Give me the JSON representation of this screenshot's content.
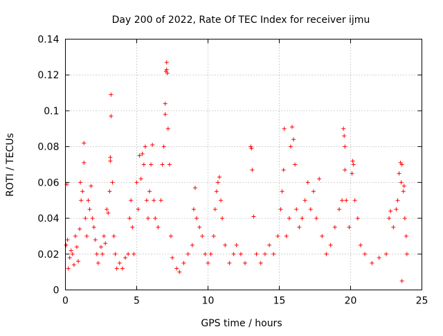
{
  "chart_data": {
    "type": "scatter",
    "title": "Day 200 of 2022, Rate Of TEC Index for receiver ijmu",
    "xlabel": "GPS time / hours",
    "ylabel": "ROTI / TECUs",
    "xlim": [
      0,
      25
    ],
    "ylim": [
      0,
      0.14
    ],
    "xticks": [
      "0",
      "5",
      "10",
      "15",
      "20",
      "25"
    ],
    "yticks": [
      "0",
      "0.02",
      "0.04",
      "0.06",
      "0.08",
      "0.1",
      "0.12",
      "0.14"
    ],
    "grid": true,
    "marker": "plus",
    "color": "#ff0000",
    "series": [
      {
        "points": [
          [
            0.05,
            0.025
          ],
          [
            0.1,
            0.059
          ],
          [
            0.15,
            0.028
          ],
          [
            0.2,
            0.012
          ],
          [
            0.3,
            0.018
          ],
          [
            0.4,
            0.022
          ],
          [
            0.5,
            0.02
          ],
          [
            0.6,
            0.014
          ],
          [
            0.7,
            0.03
          ],
          [
            0.8,
            0.024
          ],
          [
            0.9,
            0.016
          ],
          [
            1.0,
            0.034
          ],
          [
            1.05,
            0.06
          ],
          [
            1.1,
            0.05
          ],
          [
            1.2,
            0.055
          ],
          [
            1.3,
            0.071
          ],
          [
            1.3,
            0.082
          ],
          [
            1.4,
            0.04
          ],
          [
            1.5,
            0.03
          ],
          [
            1.6,
            0.05
          ],
          [
            1.7,
            0.045
          ],
          [
            1.8,
            0.058
          ],
          [
            1.9,
            0.04
          ],
          [
            2.0,
            0.035
          ],
          [
            2.1,
            0.028
          ],
          [
            2.2,
            0.02
          ],
          [
            2.3,
            0.015
          ],
          [
            2.5,
            0.024
          ],
          [
            2.6,
            0.02
          ],
          [
            2.7,
            0.03
          ],
          [
            2.8,
            0.026
          ],
          [
            2.9,
            0.045
          ],
          [
            3.0,
            0.043
          ],
          [
            3.1,
            0.055
          ],
          [
            3.15,
            0.074
          ],
          [
            3.15,
            0.072
          ],
          [
            3.2,
            0.097
          ],
          [
            3.2,
            0.109
          ],
          [
            3.3,
            0.06
          ],
          [
            3.4,
            0.03
          ],
          [
            3.5,
            0.02
          ],
          [
            3.6,
            0.012
          ],
          [
            3.8,
            0.015
          ],
          [
            4.0,
            0.012
          ],
          [
            4.2,
            0.018
          ],
          [
            4.4,
            0.02
          ],
          [
            4.5,
            0.04
          ],
          [
            4.6,
            0.05
          ],
          [
            4.7,
            0.035
          ],
          [
            4.8,
            0.02
          ],
          [
            5.0,
            0.06
          ],
          [
            5.1,
            0.045
          ],
          [
            5.2,
            0.075
          ],
          [
            5.3,
            0.062
          ],
          [
            5.4,
            0.076
          ],
          [
            5.5,
            0.07
          ],
          [
            5.6,
            0.08
          ],
          [
            5.7,
            0.05
          ],
          [
            5.8,
            0.04
          ],
          [
            5.9,
            0.055
          ],
          [
            6.0,
            0.07
          ],
          [
            6.1,
            0.081
          ],
          [
            6.2,
            0.05
          ],
          [
            6.3,
            0.04
          ],
          [
            6.5,
            0.035
          ],
          [
            6.7,
            0.05
          ],
          [
            6.8,
            0.07
          ],
          [
            6.9,
            0.08
          ],
          [
            7.0,
            0.104
          ],
          [
            7.0,
            0.098
          ],
          [
            7.05,
            0.122
          ],
          [
            7.1,
            0.127
          ],
          [
            7.1,
            0.123
          ],
          [
            7.15,
            0.121
          ],
          [
            7.2,
            0.09
          ],
          [
            7.3,
            0.07
          ],
          [
            7.4,
            0.03
          ],
          [
            7.5,
            0.018
          ],
          [
            7.8,
            0.012
          ],
          [
            8.0,
            0.01
          ],
          [
            8.3,
            0.015
          ],
          [
            8.6,
            0.02
          ],
          [
            8.9,
            0.025
          ],
          [
            9.0,
            0.045
          ],
          [
            9.1,
            0.057
          ],
          [
            9.2,
            0.04
          ],
          [
            9.4,
            0.035
          ],
          [
            9.6,
            0.03
          ],
          [
            9.8,
            0.02
          ],
          [
            10.0,
            0.015
          ],
          [
            10.2,
            0.02
          ],
          [
            10.4,
            0.03
          ],
          [
            10.5,
            0.045
          ],
          [
            10.6,
            0.055
          ],
          [
            10.7,
            0.06
          ],
          [
            10.8,
            0.063
          ],
          [
            10.9,
            0.05
          ],
          [
            11.0,
            0.04
          ],
          [
            11.2,
            0.025
          ],
          [
            11.5,
            0.015
          ],
          [
            11.8,
            0.02
          ],
          [
            12.0,
            0.025
          ],
          [
            12.3,
            0.02
          ],
          [
            12.6,
            0.015
          ],
          [
            13.0,
            0.08
          ],
          [
            13.05,
            0.079
          ],
          [
            13.1,
            0.067
          ],
          [
            13.2,
            0.041
          ],
          [
            13.4,
            0.02
          ],
          [
            13.7,
            0.015
          ],
          [
            14.0,
            0.02
          ],
          [
            14.3,
            0.025
          ],
          [
            14.6,
            0.02
          ],
          [
            14.9,
            0.03
          ],
          [
            15.1,
            0.045
          ],
          [
            15.2,
            0.055
          ],
          [
            15.3,
            0.067
          ],
          [
            15.35,
            0.09
          ],
          [
            15.5,
            0.03
          ],
          [
            15.7,
            0.04
          ],
          [
            15.8,
            0.08
          ],
          [
            15.9,
            0.091
          ],
          [
            16.0,
            0.084
          ],
          [
            16.1,
            0.07
          ],
          [
            16.2,
            0.045
          ],
          [
            16.4,
            0.035
          ],
          [
            16.6,
            0.04
          ],
          [
            16.8,
            0.05
          ],
          [
            17.0,
            0.06
          ],
          [
            17.2,
            0.045
          ],
          [
            17.4,
            0.055
          ],
          [
            17.6,
            0.04
          ],
          [
            17.8,
            0.062
          ],
          [
            18.0,
            0.03
          ],
          [
            18.3,
            0.02
          ],
          [
            18.6,
            0.025
          ],
          [
            18.9,
            0.035
          ],
          [
            19.2,
            0.045
          ],
          [
            19.4,
            0.05
          ],
          [
            19.5,
            0.09
          ],
          [
            19.55,
            0.086
          ],
          [
            19.6,
            0.08
          ],
          [
            19.6,
            0.067
          ],
          [
            19.7,
            0.05
          ],
          [
            19.9,
            0.035
          ],
          [
            20.1,
            0.065
          ],
          [
            20.15,
            0.072
          ],
          [
            20.2,
            0.07
          ],
          [
            20.3,
            0.05
          ],
          [
            20.5,
            0.04
          ],
          [
            20.7,
            0.025
          ],
          [
            21.0,
            0.02
          ],
          [
            21.5,
            0.015
          ],
          [
            22.0,
            0.018
          ],
          [
            22.5,
            0.02
          ],
          [
            22.7,
            0.04
          ],
          [
            22.8,
            0.044
          ],
          [
            23.0,
            0.035
          ],
          [
            23.2,
            0.045
          ],
          [
            23.3,
            0.05
          ],
          [
            23.4,
            0.065
          ],
          [
            23.5,
            0.071
          ],
          [
            23.55,
            0.06
          ],
          [
            23.6,
            0.07
          ],
          [
            23.7,
            0.055
          ],
          [
            23.75,
            0.058
          ],
          [
            23.8,
            0.04
          ],
          [
            23.9,
            0.03
          ],
          [
            23.95,
            0.02
          ],
          [
            23.6,
            0.005
          ]
        ]
      }
    ]
  }
}
